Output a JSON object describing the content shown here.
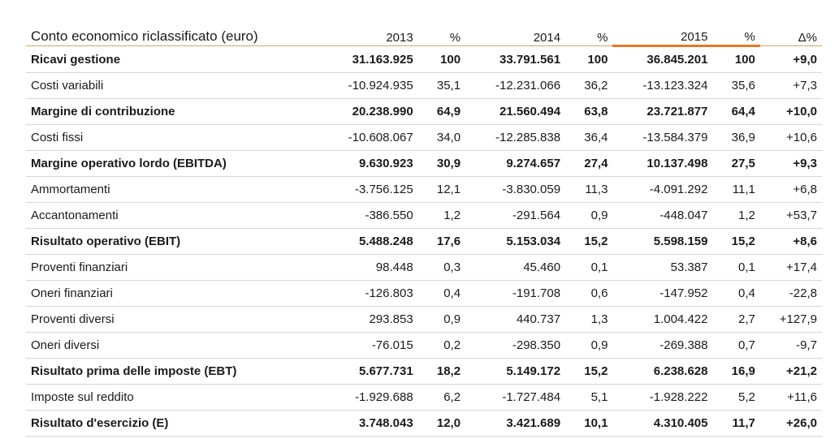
{
  "header": {
    "title": "Conto economico riclassificato (euro)",
    "col_2013": "2013",
    "col_pct1": "%",
    "col_2014": "2014",
    "col_pct2": "%",
    "col_2015": "2015",
    "col_pct3": "%",
    "col_delta": "Δ%"
  },
  "rows": [
    {
      "label": "Ricavi gestione",
      "v2013": "31.163.925",
      "p2013": "100",
      "v2014": "33.791.561",
      "p2014": "100",
      "v2015": "36.845.201",
      "p2015": "100",
      "delta": "+9,0",
      "bold": true
    },
    {
      "label": "Costi variabili",
      "v2013": "-10.924.935",
      "p2013": "35,1",
      "v2014": "-12.231.066",
      "p2014": "36,2",
      "v2015": "-13.123.324",
      "p2015": "35,6",
      "delta": "+7,3",
      "bold": false
    },
    {
      "label": "Margine di contribuzione",
      "v2013": "20.238.990",
      "p2013": "64,9",
      "v2014": "21.560.494",
      "p2014": "63,8",
      "v2015": "23.721.877",
      "p2015": "64,4",
      "delta": "+10,0",
      "bold": true
    },
    {
      "label": "Costi fissi",
      "v2013": "-10.608.067",
      "p2013": "34,0",
      "v2014": "-12.285.838",
      "p2014": "36,4",
      "v2015": "-13.584.379",
      "p2015": "36,9",
      "delta": "+10,6",
      "bold": false
    },
    {
      "label": "Margine operativo lordo (EBITDA)",
      "v2013": "9.630.923",
      "p2013": "30,9",
      "v2014": "9.274.657",
      "p2014": "27,4",
      "v2015": "10.137.498",
      "p2015": "27,5",
      "delta": "+9,3",
      "bold": true
    },
    {
      "label": "Ammortamenti",
      "v2013": "-3.756.125",
      "p2013": "12,1",
      "v2014": "-3.830.059",
      "p2014": "11,3",
      "v2015": "-4.091.292",
      "p2015": "11,1",
      "delta": "+6,8",
      "bold": false
    },
    {
      "label": "Accantonamenti",
      "v2013": "-386.550",
      "p2013": "1,2",
      "v2014": "-291.564",
      "p2014": "0,9",
      "v2015": "-448.047",
      "p2015": "1,2",
      "delta": "+53,7",
      "bold": false
    },
    {
      "label": "Risultato operativo (EBIT)",
      "v2013": "5.488.248",
      "p2013": "17,6",
      "v2014": "5.153.034",
      "p2014": "15,2",
      "v2015": "5.598.159",
      "p2015": "15,2",
      "delta": "+8,6",
      "bold": true
    },
    {
      "label": "Proventi finanziari",
      "v2013": "98.448",
      "p2013": "0,3",
      "v2014": "45.460",
      "p2014": "0,1",
      "v2015": "53.387",
      "p2015": "0,1",
      "delta": "+17,4",
      "bold": false
    },
    {
      "label": "Oneri finanziari",
      "v2013": "-126.803",
      "p2013": "0,4",
      "v2014": "-191.708",
      "p2014": "0,6",
      "v2015": "-147.952",
      "p2015": "0,4",
      "delta": "-22,8",
      "bold": false
    },
    {
      "label": "Proventi diversi",
      "v2013": "293.853",
      "p2013": "0,9",
      "v2014": "440.737",
      "p2014": "1,3",
      "v2015": "1.004.422",
      "p2015": "2,7",
      "delta": "+127,9",
      "bold": false
    },
    {
      "label": "Oneri diversi",
      "v2013": "-76.015",
      "p2013": "0,2",
      "v2014": "-298.350",
      "p2014": "0,9",
      "v2015": "-269.388",
      "p2015": "0,7",
      "delta": "-9,7",
      "bold": false
    },
    {
      "label": "Risultato prima delle imposte (EBT)",
      "v2013": "5.677.731",
      "p2013": "18,2",
      "v2014": "5.149.172",
      "p2014": "15,2",
      "v2015": "6.238.628",
      "p2015": "16,9",
      "delta": "+21,2",
      "bold": true
    },
    {
      "label": "Imposte sul reddito",
      "v2013": "-1.929.688",
      "p2013": "6,2",
      "v2014": "-1.727.484",
      "p2014": "5,1",
      "v2015": "-1.928.222",
      "p2015": "5,2",
      "delta": "+11,6",
      "bold": false
    },
    {
      "label": "Risultato d'esercizio (E)",
      "v2013": "3.748.043",
      "p2013": "12,0",
      "v2014": "3.421.689",
      "p2014": "10,1",
      "v2015": "4.310.405",
      "p2015": "11,7",
      "delta": "+26,0",
      "bold": true
    }
  ],
  "colors": {
    "header_rule": "#d4a46c",
    "highlight_rule": "#e87722",
    "row_rule": "#d6d6d6"
  }
}
